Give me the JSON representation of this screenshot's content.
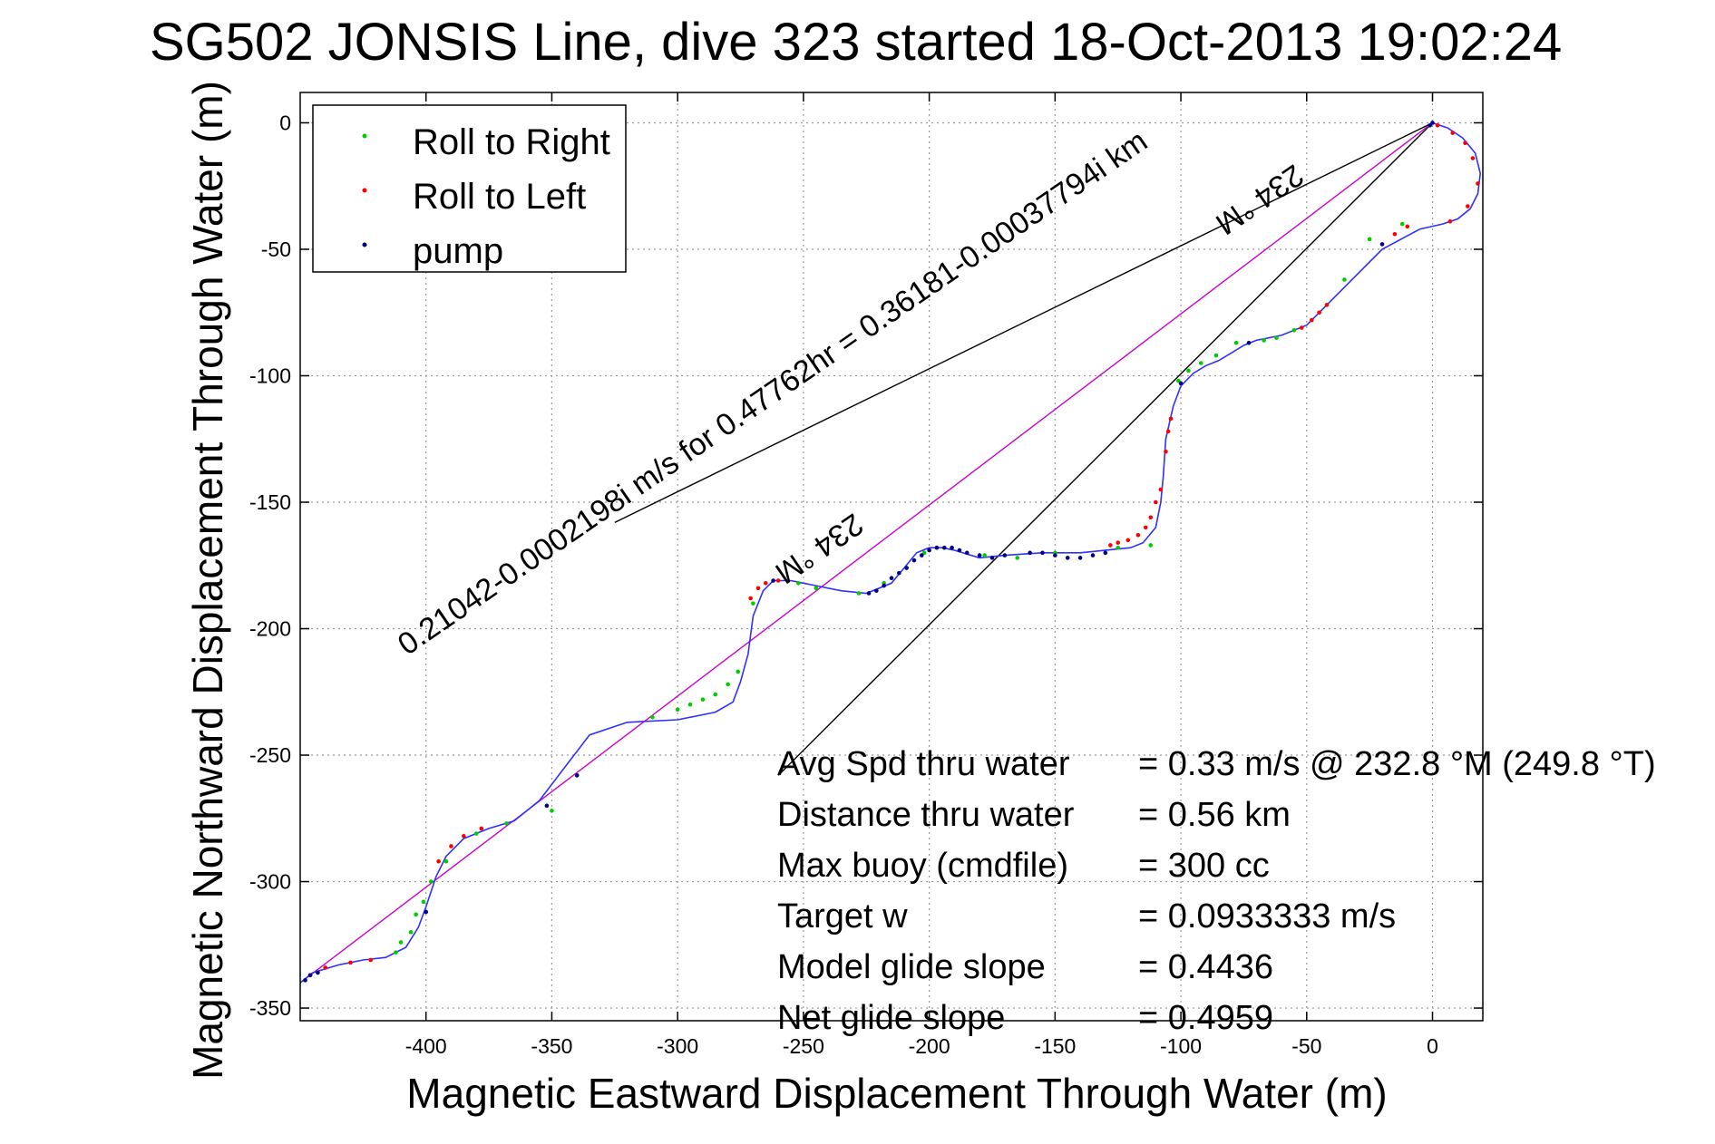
{
  "chart_data": {
    "type": "line",
    "title": "SG502 JONSIS Line, dive 323 started 18-Oct-2013 19:02:24",
    "xlabel": "Magnetic Eastward Displacement Through Water (m)",
    "ylabel": "Magnetic Northward Displacement Through Water (m)",
    "xlim": [
      -450,
      20
    ],
    "ylim": [
      -355,
      12
    ],
    "xticks": [
      -400,
      -350,
      -300,
      -250,
      -200,
      -150,
      -100,
      -50,
      0
    ],
    "yticks": [
      0,
      -50,
      -100,
      -150,
      -200,
      -250,
      -300,
      -350
    ],
    "grid": true,
    "legend_position": "top-left",
    "legend": [
      {
        "label": "Roll to Right",
        "color": "#00cc00"
      },
      {
        "label": "Roll to Left",
        "color": "#ff0000"
      },
      {
        "label": "pump",
        "color": "#00008b"
      }
    ],
    "track": {
      "name": "glider track",
      "color": "#3030ff",
      "x": [
        0,
        6,
        12,
        17,
        19,
        18,
        15,
        10,
        4,
        -5,
        -20,
        -40,
        -50,
        -60,
        -70,
        -75,
        -80,
        -85,
        -90,
        -95,
        -100,
        -103,
        -106,
        -107,
        -108,
        -110,
        -115,
        -120,
        -140,
        -155,
        -170,
        -180,
        -190,
        -195,
        -200,
        -205,
        -210,
        -215,
        -225,
        -235,
        -245,
        -255,
        -262,
        -266,
        -270,
        -272,
        -275,
        -278,
        -285,
        -300,
        -320,
        -335,
        -345,
        -355,
        -365,
        -375,
        -385,
        -392,
        -396,
        -400,
        -403,
        -408,
        -416,
        -425,
        -435,
        -445,
        -450
      ],
      "y": [
        0,
        -2,
        -6,
        -12,
        -20,
        -28,
        -34,
        -38,
        -40,
        -42,
        -50,
        -70,
        -80,
        -84,
        -86,
        -88,
        -91,
        -94,
        -96,
        -99,
        -104,
        -112,
        -125,
        -140,
        -150,
        -160,
        -166,
        -168,
        -170,
        -170,
        -171,
        -172,
        -169,
        -168,
        -168,
        -170,
        -176,
        -182,
        -186,
        -185,
        -183,
        -181,
        -181,
        -185,
        -195,
        -210,
        -221,
        -229,
        -233,
        -236,
        -237,
        -242,
        -255,
        -268,
        -276,
        -279,
        -283,
        -290,
        -298,
        -310,
        -318,
        -326,
        -330,
        -331,
        -333,
        -336,
        -340
      ]
    },
    "markers": {
      "right": {
        "x": [
          -25,
          -12,
          -35,
          -55,
          -62,
          -67,
          -78,
          -86,
          -92,
          -97,
          -101,
          -112,
          -125,
          -150,
          -165,
          -178,
          -202,
          -218,
          -228,
          -245,
          -252,
          -270,
          -276,
          -280,
          -285,
          -290,
          -295,
          -300,
          -310,
          -340,
          -350,
          -368,
          -380,
          -392,
          -398,
          -401,
          -404,
          -406,
          -410,
          -412
        ],
        "y": [
          -46,
          -40,
          -62,
          -82,
          -85,
          -86,
          -87,
          -92,
          -95,
          -98,
          -102,
          -167,
          -168,
          -170,
          -172,
          -171,
          -170,
          -182,
          -186,
          -184,
          -182,
          -190,
          -217,
          -222,
          -226,
          -228,
          -230,
          -232,
          -235,
          -258,
          -272,
          -277,
          -281,
          -292,
          -300,
          -308,
          -313,
          -320,
          -324,
          -328
        ]
      },
      "left": {
        "x": [
          2,
          8,
          13,
          16,
          18,
          14,
          7,
          -10,
          -15,
          -42,
          -45,
          -48,
          -52,
          -104,
          -105,
          -106,
          -108,
          -110,
          -112,
          -114,
          -117,
          -121,
          -125,
          -128,
          -260,
          -265,
          -268,
          -271,
          -378,
          -385,
          -390,
          -395,
          -422,
          -430,
          -440,
          -446
        ],
        "y": [
          -1,
          -4,
          -8,
          -14,
          -24,
          -33,
          -39,
          -41,
          -44,
          -72,
          -75,
          -78,
          -81,
          -117,
          -122,
          -130,
          -145,
          -150,
          -156,
          -160,
          -163,
          -165,
          -166,
          -167,
          -181,
          -182,
          -184,
          -188,
          -279,
          -282,
          -286,
          -292,
          -331,
          -332,
          -334,
          -337
        ]
      },
      "pump": {
        "x": [
          0,
          -1,
          -20,
          -73,
          -100,
          -130,
          -135,
          -140,
          -145,
          -150,
          -155,
          -160,
          -170,
          -175,
          -180,
          -185,
          -188,
          -191,
          -194,
          -197,
          -200,
          -203,
          -206,
          -209,
          -212,
          -215,
          -218,
          -221,
          -224,
          -262,
          -340,
          -352,
          -400,
          -443,
          -446,
          -448
        ],
        "y": [
          0,
          -1,
          -48,
          -87,
          -103,
          -170,
          -171,
          -172,
          -172,
          -171,
          -170,
          -170,
          -171,
          -172,
          -171,
          -170,
          -169,
          -168,
          -168,
          -168,
          -169,
          -171,
          -173,
          -176,
          -178,
          -180,
          -183,
          -185,
          -186,
          -181,
          -258,
          -270,
          -312,
          -336,
          -337,
          -339
        ]
      }
    },
    "ref_lines": [
      {
        "from": [
          0,
          0
        ],
        "to": [
          -325,
          -158
        ]
      },
      {
        "from": [
          0,
          0
        ],
        "to": [
          -260,
          -258
        ]
      },
      {
        "from": [
          0,
          0
        ],
        "to": [
          -450,
          -340
        ]
      }
    ],
    "annotations": [
      {
        "text": "0.21042-0.0002198i m/s for 0.47762hr = 0.36181-0.00037794i km",
        "x": -250,
        "y": -120
      },
      {
        "text": "234 °M",
        "x": -240,
        "y": -165
      },
      {
        "text": "234 °M",
        "x": -70,
        "y": -28
      }
    ],
    "stats": [
      {
        "label": "Avg Spd thru water",
        "value": "=  0.33 m/s @ 232.8 °M (249.8 °T)"
      },
      {
        "label": "Distance thru water",
        "value": "=  0.56 km"
      },
      {
        "label": "Max buoy (cmdfile)",
        "value": "= 300 cc"
      },
      {
        "label": "Target w",
        "value": "= 0.0933333 m/s"
      },
      {
        "label": "Model glide slope",
        "value": "= 0.4436"
      },
      {
        "label": "Net glide slope",
        "value": "= 0.4959"
      }
    ]
  }
}
